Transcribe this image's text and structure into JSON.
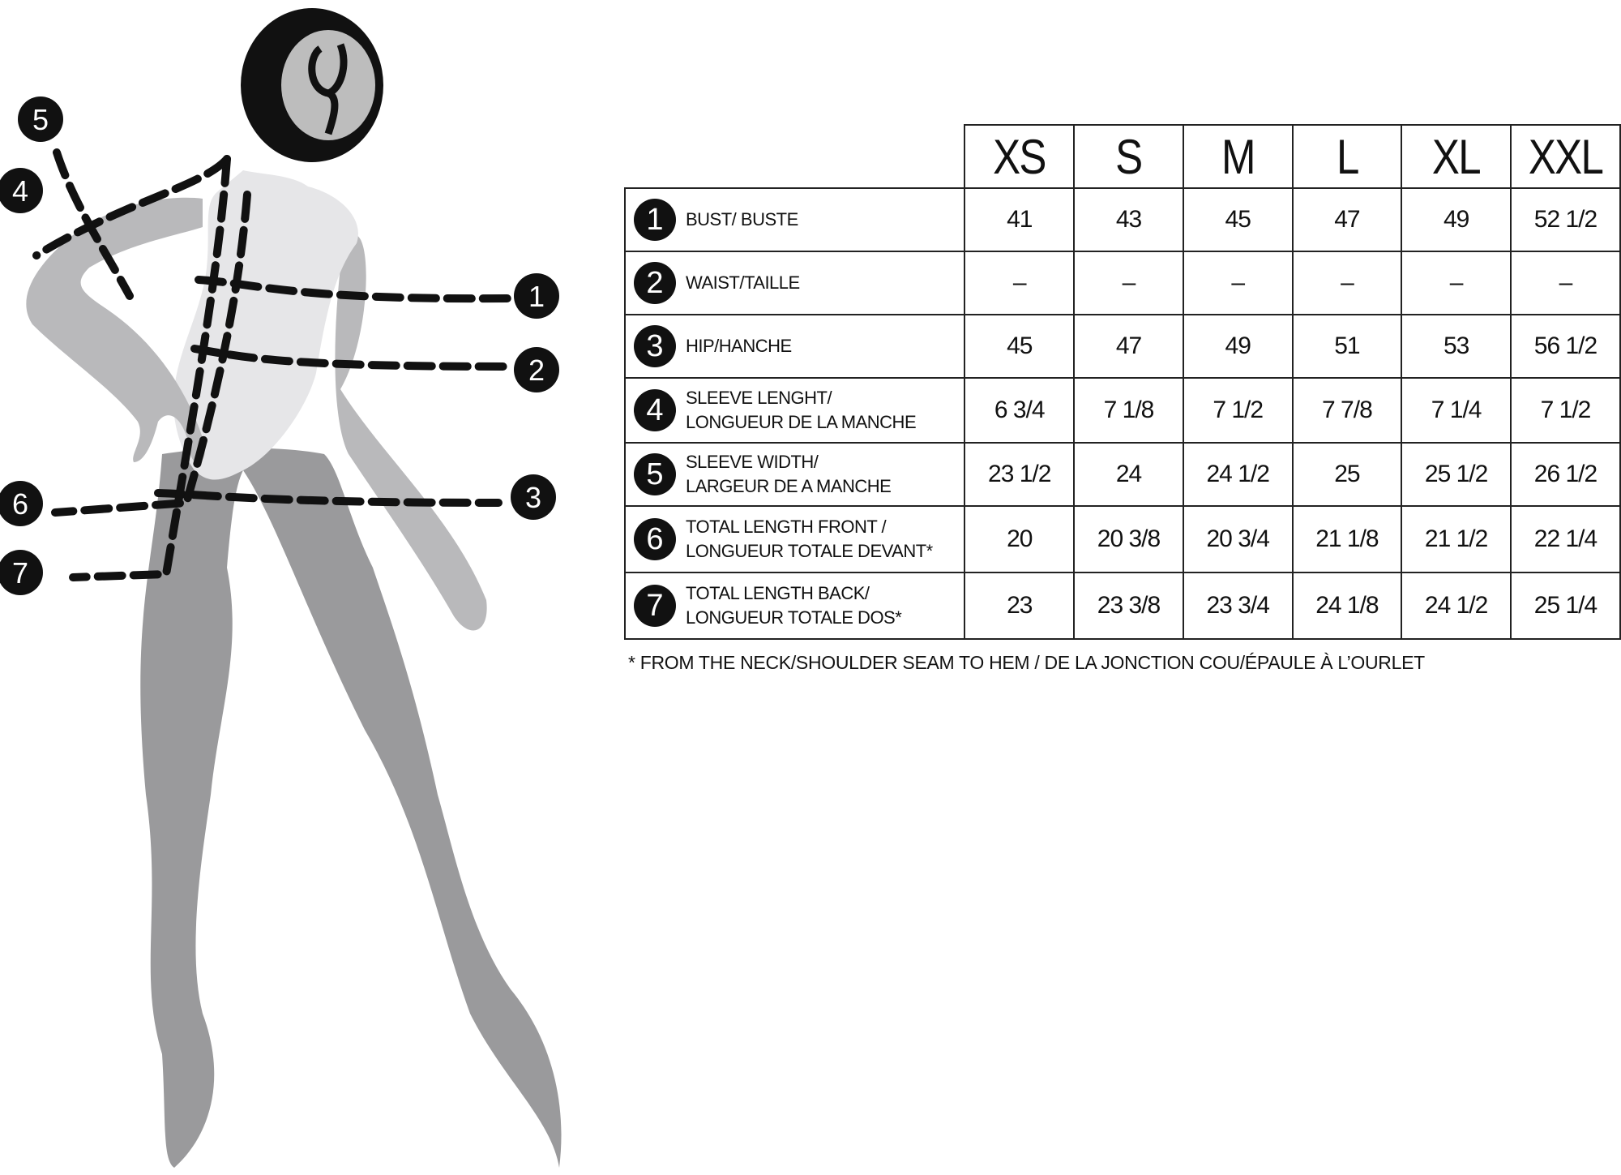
{
  "sizes": [
    "XS",
    "S",
    "M",
    "L",
    "XL",
    "XXL"
  ],
  "rows": [
    {
      "num": "1",
      "label1": "BUST/ BUSTE",
      "label2": "",
      "values": [
        "41",
        "43",
        "45",
        "47",
        "49",
        "52 1/2"
      ]
    },
    {
      "num": "2",
      "label1": "WAIST/TAILLE",
      "label2": "",
      "values": [
        "–",
        "–",
        "–",
        "–",
        "–",
        "–"
      ]
    },
    {
      "num": "3",
      "label1": "HIP/HANCHE",
      "label2": "",
      "values": [
        "45",
        "47",
        "49",
        "51",
        "53",
        "56 1/2"
      ]
    },
    {
      "num": "4",
      "label1": "SLEEVE LENGHT/",
      "label2": "LONGUEUR DE LA MANCHE",
      "values": [
        "6 3/4",
        "7 1/8",
        "7 1/2",
        "7 7/8",
        "7 1/4",
        "7 1/2"
      ]
    },
    {
      "num": "5",
      "label1": "SLEEVE WIDTH/",
      "label2": "LARGEUR DE A MANCHE",
      "values": [
        "23 1/2",
        "24",
        "24 1/2",
        "25",
        "25 1/2",
        "26 1/2"
      ]
    },
    {
      "num": "6",
      "label1": "TOTAL LENGTH FRONT /",
      "label2": "LONGUEUR TOTALE DEVANT*",
      "values": [
        "20",
        "20 3/8",
        "20 3/4",
        "21 1/8",
        "21 1/2",
        "22 1/4"
      ]
    },
    {
      "num": "7",
      "label1": "TOTAL LENGTH BACK/",
      "label2": "LONGUEUR TOTALE DOS*",
      "values": [
        "23",
        "23 3/8",
        "23 3/4",
        "24 1/8",
        "24 1/2",
        "25 1/4"
      ]
    }
  ],
  "footnote": "*   FROM THE NECK/SHOULDER SEAM TO HEM / DE LA JONCTION COU/ÉPAULE À L’OURLET",
  "figure": {
    "markers": [
      "1",
      "2",
      "3",
      "4",
      "5",
      "6",
      "7"
    ]
  },
  "colors": {
    "ink": "#111111",
    "body_light": "#e6e6e8",
    "body_mid": "#b9b9bb",
    "body_dark": "#9a9a9c"
  }
}
